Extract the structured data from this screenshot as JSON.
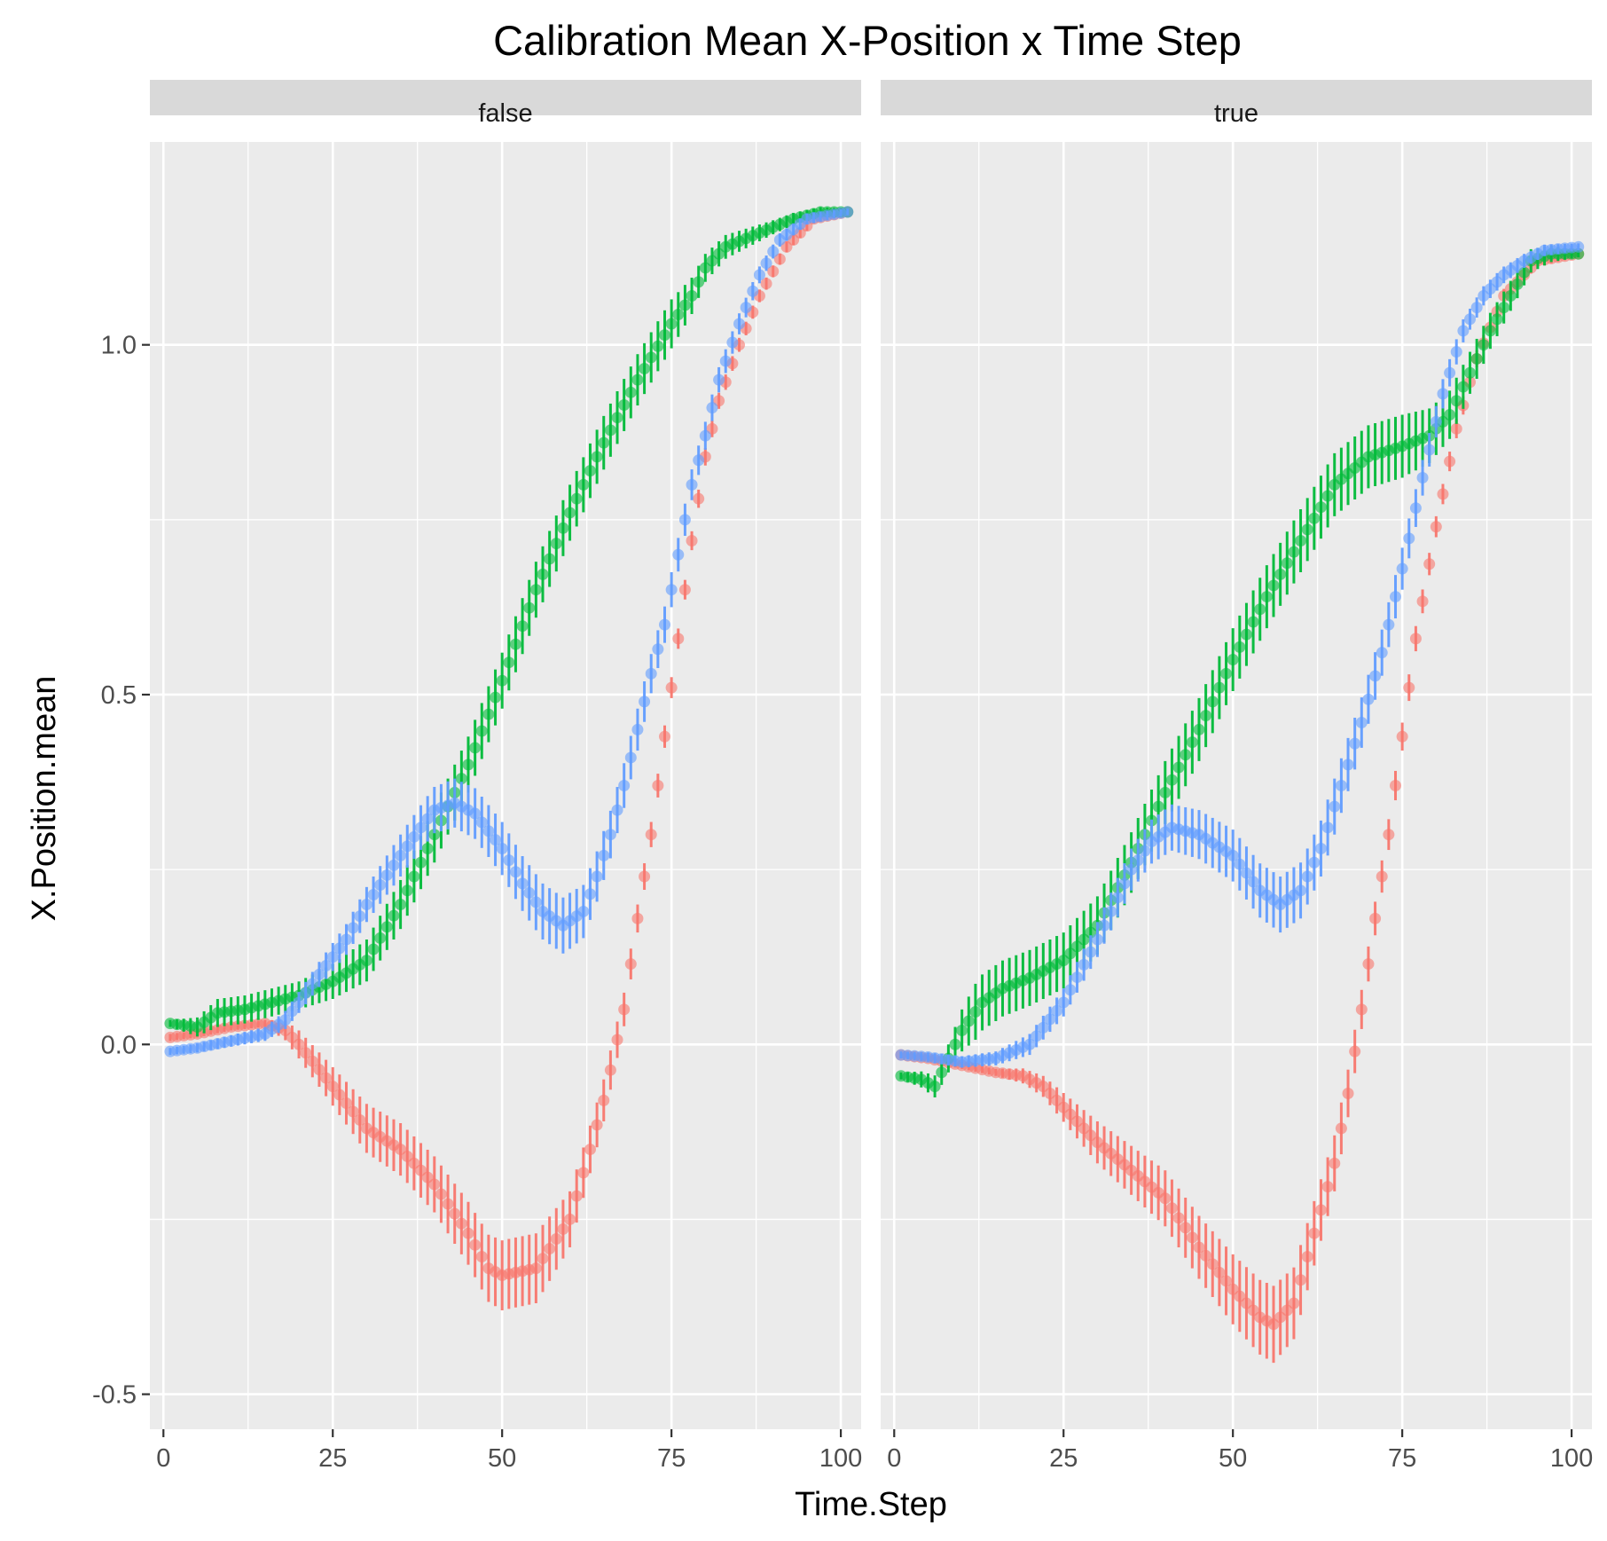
{
  "chart_data": {
    "type": "line",
    "title": "Calibration Mean X-Position x Time Step",
    "xlabel": "Time.Step",
    "ylabel": "X.Position.mean",
    "xlim": [
      -2,
      103
    ],
    "ylim": [
      -0.55,
      1.29
    ],
    "x_ticks": [
      "0",
      "25",
      "50",
      "75",
      "100"
    ],
    "x_tick_values": [
      0,
      25,
      50,
      75,
      100
    ],
    "y_ticks": [
      "-0.5",
      "0.0",
      "0.5",
      "1.0"
    ],
    "y_tick_values": [
      -0.5,
      0.0,
      0.5,
      1.0
    ],
    "grid": true,
    "legend": "none",
    "panels": [
      {
        "label": "false",
        "series": [
          {
            "color": "#F8766D",
            "points": [
              [
                1,
                0.01
              ],
              [
                5,
                0.015
              ],
              [
                10,
                0.025
              ],
              [
                15,
                0.03
              ],
              [
                18,
                0.02
              ],
              [
                20,
                0.0
              ],
              [
                25,
                -0.06
              ],
              [
                30,
                -0.12
              ],
              [
                35,
                -0.15
              ],
              [
                40,
                -0.2
              ],
              [
                45,
                -0.27
              ],
              [
                48,
                -0.32
              ],
              [
                50,
                -0.33
              ],
              [
                55,
                -0.32
              ],
              [
                60,
                -0.25
              ],
              [
                63,
                -0.15
              ],
              [
                65,
                -0.08
              ],
              [
                68,
                0.05
              ],
              [
                70,
                0.18
              ],
              [
                72,
                0.3
              ],
              [
                74,
                0.44
              ],
              [
                76,
                0.58
              ],
              [
                78,
                0.72
              ],
              [
                80,
                0.84
              ],
              [
                82,
                0.92
              ],
              [
                85,
                1.0
              ],
              [
                88,
                1.07
              ],
              [
                92,
                1.14
              ],
              [
                96,
                1.18
              ],
              [
                101,
                1.19
              ]
            ],
            "half_width": [
              [
                1,
                0.005
              ],
              [
                15,
                0.005
              ],
              [
                20,
                0.02
              ],
              [
                30,
                0.035
              ],
              [
                40,
                0.04
              ],
              [
                50,
                0.05
              ],
              [
                55,
                0.05
              ],
              [
                60,
                0.04
              ],
              [
                65,
                0.03
              ],
              [
                70,
                0.02
              ],
              [
                75,
                0.015
              ],
              [
                85,
                0.01
              ],
              [
                101,
                0.005
              ]
            ]
          },
          {
            "color": "#00BA38",
            "points": [
              [
                1,
                0.03
              ],
              [
                5,
                0.025
              ],
              [
                8,
                0.045
              ],
              [
                12,
                0.05
              ],
              [
                16,
                0.06
              ],
              [
                20,
                0.07
              ],
              [
                25,
                0.09
              ],
              [
                30,
                0.12
              ],
              [
                35,
                0.2
              ],
              [
                40,
                0.3
              ],
              [
                45,
                0.4
              ],
              [
                50,
                0.52
              ],
              [
                55,
                0.65
              ],
              [
                60,
                0.76
              ],
              [
                65,
                0.86
              ],
              [
                70,
                0.95
              ],
              [
                75,
                1.03
              ],
              [
                78,
                1.07
              ],
              [
                80,
                1.11
              ],
              [
                83,
                1.14
              ],
              [
                88,
                1.16
              ],
              [
                93,
                1.18
              ],
              [
                97,
                1.19
              ],
              [
                101,
                1.19
              ]
            ],
            "half_width": [
              [
                1,
                0.005
              ],
              [
                8,
                0.02
              ],
              [
                20,
                0.02
              ],
              [
                30,
                0.03
              ],
              [
                40,
                0.04
              ],
              [
                60,
                0.04
              ],
              [
                75,
                0.035
              ],
              [
                80,
                0.02
              ],
              [
                90,
                0.01
              ],
              [
                101,
                0.005
              ]
            ]
          },
          {
            "color": "#619CFF",
            "points": [
              [
                1,
                -0.01
              ],
              [
                5,
                -0.005
              ],
              [
                10,
                0.005
              ],
              [
                15,
                0.015
              ],
              [
                18,
                0.035
              ],
              [
                20,
                0.06
              ],
              [
                23,
                0.1
              ],
              [
                27,
                0.15
              ],
              [
                30,
                0.2
              ],
              [
                35,
                0.27
              ],
              [
                38,
                0.31
              ],
              [
                40,
                0.335
              ],
              [
                43,
                0.345
              ],
              [
                46,
                0.33
              ],
              [
                50,
                0.28
              ],
              [
                53,
                0.23
              ],
              [
                56,
                0.19
              ],
              [
                59,
                0.17
              ],
              [
                62,
                0.19
              ],
              [
                64,
                0.24
              ],
              [
                66,
                0.3
              ],
              [
                68,
                0.37
              ],
              [
                70,
                0.45
              ],
              [
                72,
                0.53
              ],
              [
                74,
                0.6
              ],
              [
                76,
                0.7
              ],
              [
                78,
                0.8
              ],
              [
                80,
                0.87
              ],
              [
                82,
                0.95
              ],
              [
                85,
                1.03
              ],
              [
                88,
                1.1
              ],
              [
                91,
                1.15
              ],
              [
                95,
                1.18
              ],
              [
                101,
                1.19
              ]
            ],
            "half_width": [
              [
                1,
                0.005
              ],
              [
                15,
                0.01
              ],
              [
                25,
                0.02
              ],
              [
                35,
                0.03
              ],
              [
                43,
                0.035
              ],
              [
                55,
                0.04
              ],
              [
                60,
                0.04
              ],
              [
                70,
                0.03
              ],
              [
                80,
                0.02
              ],
              [
                90,
                0.01
              ],
              [
                101,
                0.005
              ]
            ]
          }
        ]
      },
      {
        "label": "true",
        "series": [
          {
            "color": "#F8766D",
            "points": [
              [
                1,
                -0.015
              ],
              [
                5,
                -0.02
              ],
              [
                10,
                -0.03
              ],
              [
                15,
                -0.04
              ],
              [
                19,
                -0.045
              ],
              [
                22,
                -0.06
              ],
              [
                25,
                -0.09
              ],
              [
                30,
                -0.14
              ],
              [
                35,
                -0.18
              ],
              [
                40,
                -0.22
              ],
              [
                45,
                -0.29
              ],
              [
                50,
                -0.35
              ],
              [
                54,
                -0.39
              ],
              [
                56,
                -0.4
              ],
              [
                59,
                -0.37
              ],
              [
                62,
                -0.27
              ],
              [
                65,
                -0.17
              ],
              [
                67,
                -0.07
              ],
              [
                69,
                0.05
              ],
              [
                71,
                0.18
              ],
              [
                73,
                0.3
              ],
              [
                75,
                0.44
              ],
              [
                77,
                0.58
              ],
              [
                80,
                0.74
              ],
              [
                83,
                0.88
              ],
              [
                86,
                0.98
              ],
              [
                90,
                1.07
              ],
              [
                95,
                1.12
              ],
              [
                101,
                1.13
              ]
            ],
            "half_width": [
              [
                1,
                0.005
              ],
              [
                15,
                0.005
              ],
              [
                22,
                0.015
              ],
              [
                30,
                0.03
              ],
              [
                40,
                0.04
              ],
              [
                50,
                0.05
              ],
              [
                56,
                0.055
              ],
              [
                60,
                0.05
              ],
              [
                65,
                0.04
              ],
              [
                70,
                0.025
              ],
              [
                80,
                0.015
              ],
              [
                90,
                0.01
              ],
              [
                101,
                0.005
              ]
            ]
          },
          {
            "color": "#00BA38",
            "points": [
              [
                1,
                -0.045
              ],
              [
                4,
                -0.05
              ],
              [
                6,
                -0.06
              ],
              [
                8,
                -0.02
              ],
              [
                10,
                0.02
              ],
              [
                13,
                0.06
              ],
              [
                16,
                0.08
              ],
              [
                20,
                0.095
              ],
              [
                25,
                0.12
              ],
              [
                30,
                0.17
              ],
              [
                35,
                0.26
              ],
              [
                40,
                0.36
              ],
              [
                45,
                0.45
              ],
              [
                50,
                0.55
              ],
              [
                55,
                0.64
              ],
              [
                60,
                0.72
              ],
              [
                65,
                0.8
              ],
              [
                70,
                0.84
              ],
              [
                75,
                0.855
              ],
              [
                79,
                0.87
              ],
              [
                82,
                0.9
              ],
              [
                85,
                0.96
              ],
              [
                88,
                1.02
              ],
              [
                91,
                1.07
              ],
              [
                94,
                1.12
              ],
              [
                97,
                1.13
              ],
              [
                101,
                1.13
              ]
            ],
            "half_width": [
              [
                1,
                0.005
              ],
              [
                8,
                0.02
              ],
              [
                12,
                0.04
              ],
              [
                25,
                0.04
              ],
              [
                40,
                0.045
              ],
              [
                60,
                0.045
              ],
              [
                75,
                0.045
              ],
              [
                85,
                0.03
              ],
              [
                92,
                0.02
              ],
              [
                101,
                0.005
              ]
            ]
          },
          {
            "color": "#619CFF",
            "points": [
              [
                1,
                -0.015
              ],
              [
                5,
                -0.018
              ],
              [
                10,
                -0.025
              ],
              [
                15,
                -0.02
              ],
              [
                20,
                0.0
              ],
              [
                25,
                0.06
              ],
              [
                30,
                0.15
              ],
              [
                35,
                0.25
              ],
              [
                38,
                0.29
              ],
              [
                41,
                0.31
              ],
              [
                45,
                0.3
              ],
              [
                50,
                0.27
              ],
              [
                54,
                0.22
              ],
              [
                57,
                0.2
              ],
              [
                60,
                0.22
              ],
              [
                63,
                0.28
              ],
              [
                66,
                0.37
              ],
              [
                69,
                0.46
              ],
              [
                72,
                0.56
              ],
              [
                75,
                0.68
              ],
              [
                78,
                0.81
              ],
              [
                81,
                0.93
              ],
              [
                84,
                1.02
              ],
              [
                87,
                1.07
              ],
              [
                90,
                1.1
              ],
              [
                93,
                1.12
              ],
              [
                96,
                1.135
              ],
              [
                101,
                1.14
              ]
            ],
            "half_width": [
              [
                1,
                0.005
              ],
              [
                15,
                0.01
              ],
              [
                25,
                0.02
              ],
              [
                35,
                0.03
              ],
              [
                45,
                0.035
              ],
              [
                57,
                0.04
              ],
              [
                65,
                0.04
              ],
              [
                75,
                0.03
              ],
              [
                85,
                0.015
              ],
              [
                101,
                0.005
              ]
            ]
          }
        ]
      }
    ]
  }
}
